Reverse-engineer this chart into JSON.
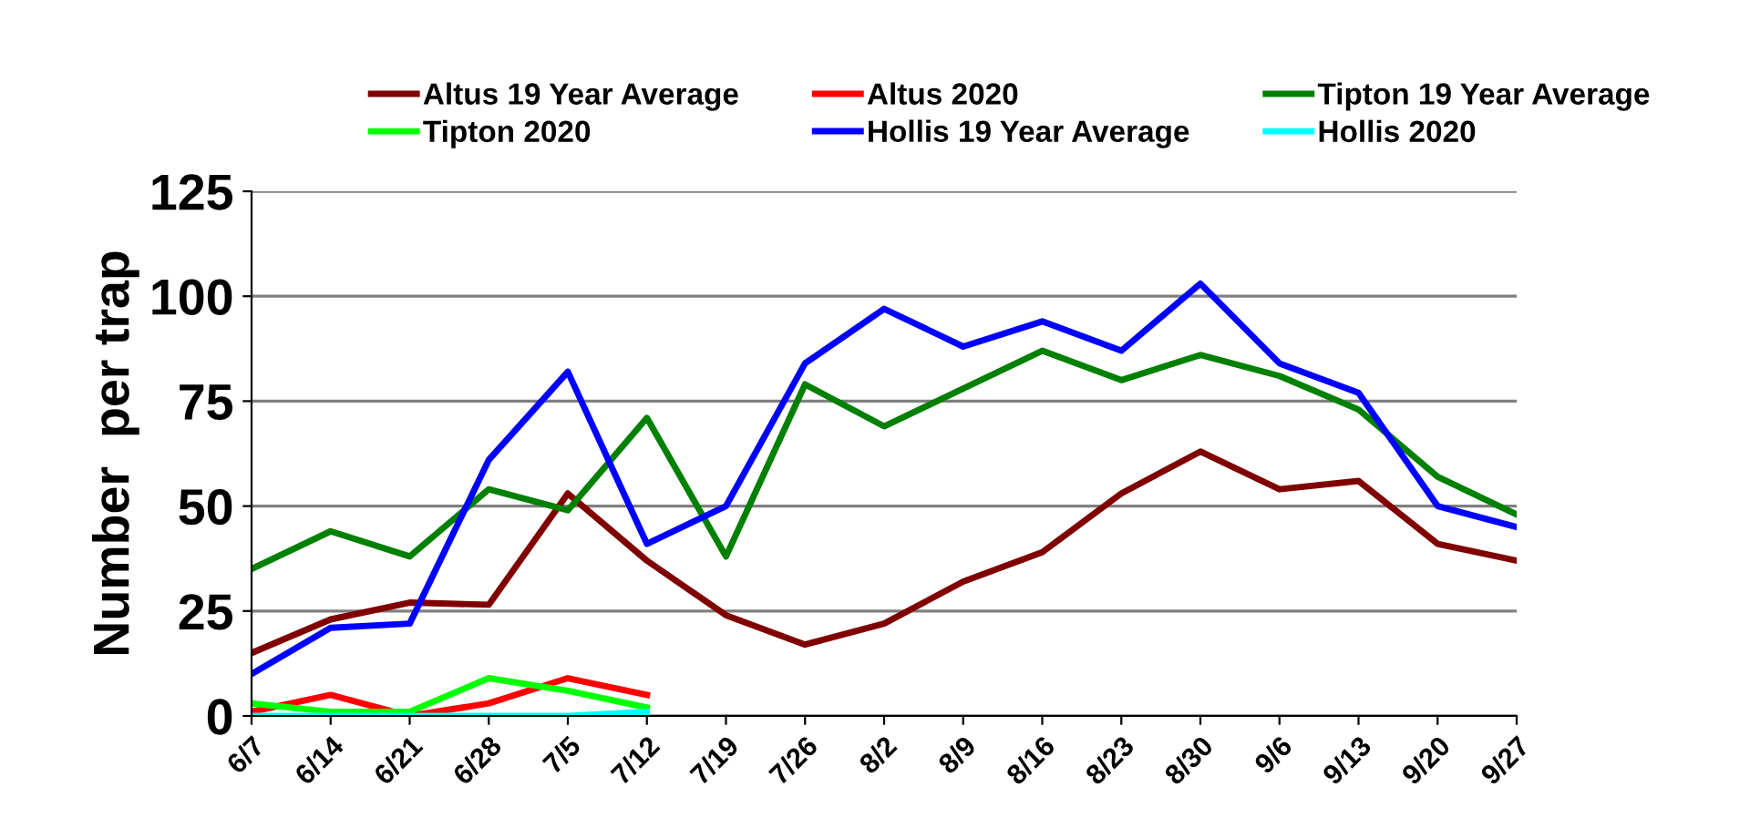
{
  "chart_data": {
    "type": "line",
    "ylabel": "Number  per trap",
    "categories": [
      "6/7",
      "6/14",
      "6/21",
      "6/28",
      "7/5",
      "7/12",
      "7/19",
      "7/26",
      "8/2",
      "8/9",
      "8/16",
      "8/23",
      "8/30",
      "9/6",
      "9/13",
      "9/20",
      "9/27"
    ],
    "series": [
      {
        "name": "Altus 19 Year Average",
        "color": "#800000",
        "values": [
          15,
          23,
          27,
          26.5,
          53,
          37,
          24,
          17,
          22,
          32,
          39,
          53,
          63,
          54,
          56,
          41,
          37
        ]
      },
      {
        "name": "Altus 2020",
        "color": "#ff0000",
        "values": [
          1,
          5,
          0,
          3,
          9,
          5,
          null,
          null,
          null,
          null,
          null,
          null,
          null,
          null,
          null,
          null,
          null
        ]
      },
      {
        "name": "Tipton 19 Year Average",
        "color": "#008000",
        "values": [
          35,
          44,
          38,
          54,
          49,
          71,
          38,
          79,
          69,
          78,
          87,
          80,
          86,
          81,
          73,
          57,
          48
        ]
      },
      {
        "name": "Tipton 2020",
        "color": "#00ff00",
        "values": [
          3,
          1,
          1,
          9,
          6,
          2,
          null,
          null,
          null,
          null,
          null,
          null,
          null,
          null,
          null,
          null,
          null
        ]
      },
      {
        "name": "Hollis 19 Year Average",
        "color": "#0000ff",
        "values": [
          10,
          21,
          22,
          61,
          82,
          41,
          50,
          84,
          97,
          88,
          94,
          87,
          103,
          84,
          77,
          50,
          45
        ]
      },
      {
        "name": "Hollis 2020",
        "color": "#00ffff",
        "values": [
          0,
          0,
          0,
          0,
          0,
          1,
          null,
          null,
          null,
          null,
          null,
          null,
          null,
          null,
          null,
          null,
          null
        ]
      }
    ],
    "ylim": [
      0,
      125
    ],
    "yticks": [
      0,
      25,
      50,
      75,
      100,
      125
    ],
    "grid": "y",
    "legend": "top",
    "marker": "none",
    "line_style": "solid"
  }
}
